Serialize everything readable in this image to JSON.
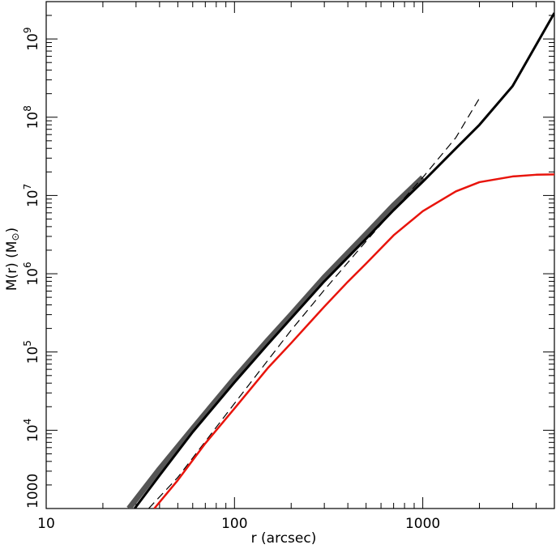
{
  "chart_data": {
    "type": "line",
    "xlabel": "r (arcsec)",
    "ylabel": "M(r) (M",
    "ylabel_symbol": "⊙",
    "ylabel_close": ")",
    "xscale": "log",
    "yscale": "log",
    "xlim": [
      10,
      5000
    ],
    "ylim": [
      1000,
      3000000000
    ],
    "grid": false,
    "x_ticks": [
      {
        "value": 10,
        "label": "10"
      },
      {
        "value": 100,
        "label": "100"
      },
      {
        "value": 1000,
        "label": "1000"
      }
    ],
    "y_ticks": [
      {
        "value": 1000,
        "base": "1000",
        "exp": ""
      },
      {
        "value": 10000,
        "base": "10",
        "exp": "4"
      },
      {
        "value": 100000,
        "base": "10",
        "exp": "5"
      },
      {
        "value": 1000000,
        "base": "10",
        "exp": "6"
      },
      {
        "value": 10000000,
        "base": "10",
        "exp": "7"
      },
      {
        "value": 100000000,
        "base": "10",
        "exp": "8"
      },
      {
        "value": 1000000000,
        "base": "10",
        "exp": "9"
      }
    ],
    "series": [
      {
        "color": "#555555",
        "width": 7,
        "dash": "",
        "x": [
          27.5,
          40,
          60,
          100,
          150,
          200,
          300,
          500,
          700,
          1000
        ],
        "y": [
          1000,
          3200,
          10500,
          46000,
          140000,
          300000,
          900000,
          3200000,
          7500000,
          17000000
        ]
      },
      {
        "color": "#000000",
        "width": 3,
        "dash": "",
        "x": [
          29.5,
          40,
          60,
          100,
          150,
          200,
          300,
          500,
          700,
          1000,
          1500,
          2000,
          3000,
          5000
        ],
        "y": [
          1000,
          2650,
          9500,
          41000,
          125000,
          270000,
          800000,
          2800000,
          6500000,
          15000000,
          40000000,
          80000000,
          250000000,
          2150000000
        ]
      },
      {
        "color": "#000000",
        "width": 1.2,
        "dash": "10,6",
        "x": [
          35,
          50,
          100,
          200,
          300,
          500,
          700,
          1000,
          1500,
          2000
        ],
        "y": [
          1000,
          2500,
          22000,
          190000,
          620000,
          2600000,
          6500000,
          17000000,
          55000000,
          175000000
        ]
      },
      {
        "color": "#e8140c",
        "width": 2.5,
        "dash": "",
        "x": [
          37.5,
          50,
          70,
          100,
          150,
          200,
          300,
          400,
          500,
          700,
          1000,
          1500,
          2000,
          3000,
          4000,
          5000
        ],
        "y": [
          1000,
          2300,
          6800,
          19000,
          62000,
          130000,
          380000,
          790000,
          1350000,
          3100000,
          6300000,
          11300000,
          14800000,
          17500000,
          18400000,
          18600000
        ]
      }
    ]
  }
}
